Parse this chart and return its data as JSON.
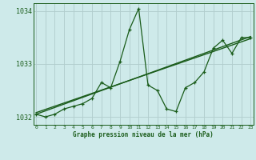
{
  "title": "Graphe pression niveau de la mer (hPa)",
  "background_color": "#ceeaea",
  "grid_color": "#b0cccc",
  "line_color": "#1a5c1a",
  "x_values": [
    0,
    1,
    2,
    3,
    4,
    5,
    6,
    7,
    8,
    9,
    10,
    11,
    12,
    13,
    14,
    15,
    16,
    17,
    18,
    19,
    20,
    21,
    22,
    23
  ],
  "series1": [
    1032.05,
    1032.0,
    1032.05,
    1032.15,
    1032.2,
    1032.25,
    1032.35,
    1032.65,
    1032.55,
    1033.05,
    1033.65,
    1034.05,
    1032.6,
    1032.5,
    1032.15,
    1032.1,
    1032.55,
    1032.65,
    1032.85,
    1033.3,
    1033.45,
    1033.2,
    1033.5,
    1033.5
  ],
  "trend1_x": [
    0,
    23
  ],
  "trend1_y": [
    1032.05,
    1033.52
  ],
  "trend2_x": [
    0,
    23
  ],
  "trend2_y": [
    1032.08,
    1033.48
  ],
  "ylim": [
    1031.85,
    1034.15
  ],
  "yticks": [
    1032,
    1033,
    1034
  ],
  "xlim": [
    -0.3,
    23.3
  ]
}
